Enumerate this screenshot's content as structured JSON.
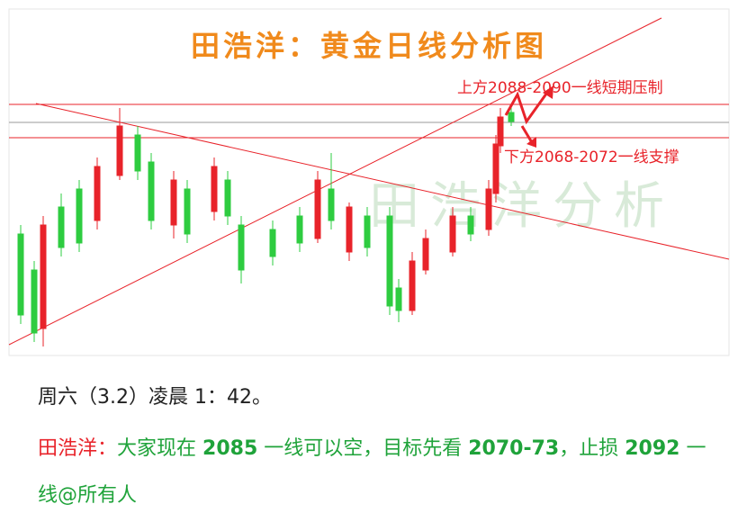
{
  "chart": {
    "title": "田浩洋：黄金日线分析图",
    "resistance_note": "上方2088-2090一线短期压制",
    "support_note": "下方2068-2072一线支撑",
    "watermark": "田浩洋分析"
  },
  "post": {
    "time": "周六（3.2）凌晨 1：42。",
    "author": "田浩洋：",
    "segments": [
      "大家现在 ",
      "2085",
      " 一线可以空，目标先看 ",
      "2070-73",
      "，止损 ",
      "2092",
      " 一线@所有人"
    ]
  }
}
